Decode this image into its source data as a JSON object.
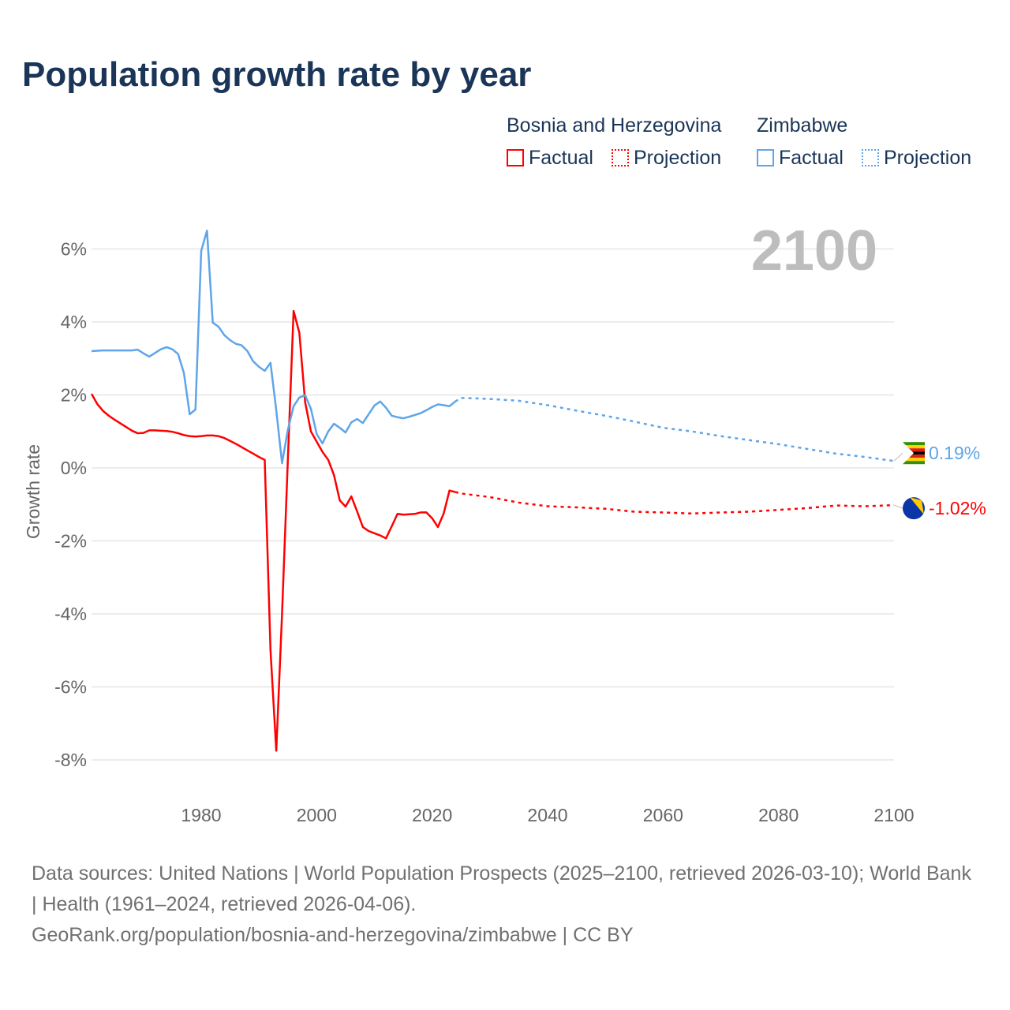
{
  "title": "Population growth rate by year",
  "legend": {
    "groups": [
      {
        "name": "Bosnia and Herzegovina",
        "factual": "Factual",
        "projection": "Projection",
        "color": "#ff0000"
      },
      {
        "name": "Zimbabwe",
        "factual": "Factual",
        "projection": "Projection",
        "color": "#5ea5ea"
      }
    ]
  },
  "chart_data": {
    "type": "line",
    "title": "Population growth rate by year",
    "ylabel": "Growth rate",
    "xlabel": "",
    "year_overlay": "2100",
    "xlim": [
      1961,
      2100
    ],
    "ylim": [
      -9,
      7
    ],
    "x_ticks": [
      1980,
      2000,
      2020,
      2040,
      2060,
      2080,
      2100
    ],
    "y_ticks": [
      6,
      4,
      2,
      0,
      -2,
      -4,
      -6,
      -8
    ],
    "y_tick_labels": [
      "6%",
      "4%",
      "2%",
      "0%",
      "-2%",
      "-4%",
      "-6%",
      "-8%"
    ],
    "grid": true,
    "series": [
      {
        "name": "Bosnia and Herzegovina",
        "color": "#ff0000",
        "end_label": "-1.02%",
        "factual": {
          "x": [
            1961,
            1962,
            1963,
            1964,
            1965,
            1966,
            1967,
            1968,
            1969,
            1970,
            1971,
            1972,
            1973,
            1974,
            1975,
            1976,
            1977,
            1978,
            1979,
            1980,
            1981,
            1982,
            1983,
            1984,
            1985,
            1986,
            1987,
            1988,
            1989,
            1990,
            1991,
            1992,
            1993,
            1994,
            1995,
            1996,
            1997,
            1998,
            1999,
            2000,
            2001,
            2002,
            2003,
            2004,
            2005,
            2006,
            2007,
            2008,
            2009,
            2010,
            2011,
            2012,
            2013,
            2014,
            2015,
            2016,
            2017,
            2018,
            2019,
            2020,
            2021,
            2022,
            2023,
            2024
          ],
          "y": [
            2.03,
            1.75,
            1.56,
            1.43,
            1.32,
            1.22,
            1.12,
            1.02,
            0.95,
            0.96,
            1.03,
            1.03,
            1.02,
            1.01,
            0.99,
            0.95,
            0.9,
            0.87,
            0.86,
            0.87,
            0.89,
            0.89,
            0.87,
            0.82,
            0.74,
            0.66,
            0.57,
            0.48,
            0.39,
            0.3,
            0.22,
            -5.0,
            -7.75,
            -4.0,
            0.2,
            4.3,
            3.7,
            1.8,
            1.0,
            0.72,
            0.44,
            0.22,
            -0.2,
            -0.89,
            -1.06,
            -0.78,
            -1.19,
            -1.62,
            -1.73,
            -1.79,
            -1.85,
            -1.93,
            -1.6,
            -1.26,
            -1.28,
            -1.27,
            -1.26,
            -1.22,
            -1.22,
            -1.38,
            -1.62,
            -1.25,
            -0.62,
            -0.66
          ]
        },
        "projection": {
          "x": [
            2024,
            2025,
            2030,
            2035,
            2040,
            2045,
            2050,
            2055,
            2060,
            2065,
            2070,
            2075,
            2080,
            2085,
            2090,
            2095,
            2100
          ],
          "y": [
            -0.66,
            -0.7,
            -0.8,
            -0.95,
            -1.05,
            -1.08,
            -1.12,
            -1.2,
            -1.22,
            -1.25,
            -1.22,
            -1.2,
            -1.15,
            -1.1,
            -1.03,
            -1.05,
            -1.02
          ]
        }
      },
      {
        "name": "Zimbabwe",
        "color": "#5ea5ea",
        "end_label": "0.19%",
        "factual": {
          "x": [
            1961,
            1962,
            1963,
            1964,
            1965,
            1966,
            1967,
            1968,
            1969,
            1970,
            1971,
            1972,
            1973,
            1974,
            1975,
            1976,
            1977,
            1978,
            1979,
            1980,
            1981,
            1982,
            1983,
            1984,
            1985,
            1986,
            1987,
            1988,
            1989,
            1990,
            1991,
            1992,
            1993,
            1994,
            1995,
            1996,
            1997,
            1998,
            1999,
            2000,
            2001,
            2002,
            2003,
            2004,
            2005,
            2006,
            2007,
            2008,
            2009,
            2010,
            2011,
            2012,
            2013,
            2014,
            2015,
            2016,
            2017,
            2018,
            2019,
            2020,
            2021,
            2022,
            2023,
            2024
          ],
          "y": [
            3.2,
            3.21,
            3.22,
            3.22,
            3.22,
            3.22,
            3.22,
            3.22,
            3.24,
            3.14,
            3.05,
            3.15,
            3.25,
            3.31,
            3.25,
            3.12,
            2.6,
            1.47,
            1.6,
            5.95,
            6.5,
            3.98,
            3.87,
            3.64,
            3.5,
            3.4,
            3.36,
            3.2,
            2.92,
            2.77,
            2.66,
            2.88,
            1.58,
            0.13,
            1.04,
            1.69,
            1.93,
            1.99,
            1.62,
            0.93,
            0.67,
            1.0,
            1.21,
            1.1,
            0.97,
            1.25,
            1.34,
            1.23,
            1.47,
            1.71,
            1.82,
            1.65,
            1.43,
            1.39,
            1.36,
            1.4,
            1.45,
            1.5,
            1.58,
            1.67,
            1.74,
            1.72,
            1.69,
            1.82
          ]
        },
        "projection": {
          "x": [
            2024,
            2025,
            2030,
            2035,
            2040,
            2045,
            2050,
            2055,
            2060,
            2065,
            2070,
            2075,
            2080,
            2085,
            2090,
            2095,
            2100
          ],
          "y": [
            1.82,
            1.92,
            1.89,
            1.84,
            1.72,
            1.57,
            1.43,
            1.27,
            1.1,
            1.0,
            0.87,
            0.76,
            0.65,
            0.52,
            0.39,
            0.3,
            0.19
          ]
        }
      }
    ]
  },
  "footer": {
    "sources": "Data sources: United Nations | World Population Prospects (2025–2100, retrieved 2026-03-10); World Bank | Health (1961–2024, retrieved 2026-04-06).",
    "link": "GeoRank.org/population/bosnia-and-herzegovina/zimbabwe | CC BY"
  }
}
